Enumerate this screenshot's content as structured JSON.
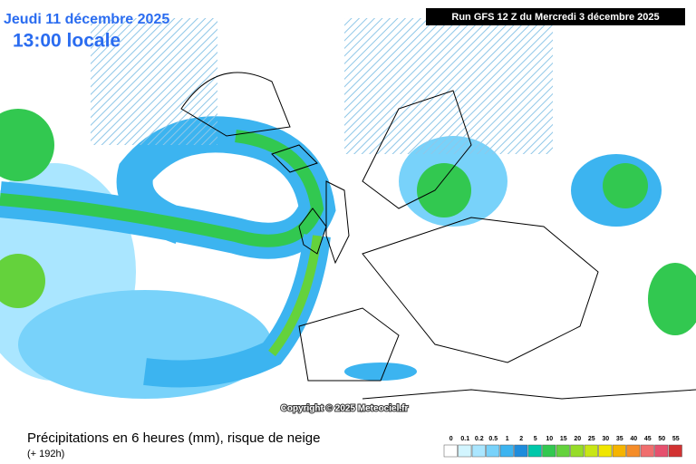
{
  "header": {
    "date": "Jeudi 11 décembre 2025",
    "time": "13:00 locale",
    "run": "Run GFS 12 Z du Mercredi 3 décembre 2025"
  },
  "copyright": "Copyright © 2025 Meteociel.fr",
  "footer": {
    "title": "Précipitations en 6 heures (mm), risque de neige",
    "lead": "(+ 192h)"
  },
  "legend": {
    "values": [
      0,
      0.1,
      0.2,
      0.5,
      1,
      2,
      5,
      10,
      15,
      20,
      25,
      30,
      35,
      40,
      45,
      50,
      55
    ],
    "colors": [
      "#ffffff",
      "#d2f5ff",
      "#aae6ff",
      "#78d2fa",
      "#3cb4f0",
      "#1e8cdc",
      "#00c8aa",
      "#32c850",
      "#64d23c",
      "#96dc28",
      "#c8e614",
      "#f0e600",
      "#f5b400",
      "#f58c28",
      "#f06e6e",
      "#e6506e",
      "#d23232"
    ]
  }
}
